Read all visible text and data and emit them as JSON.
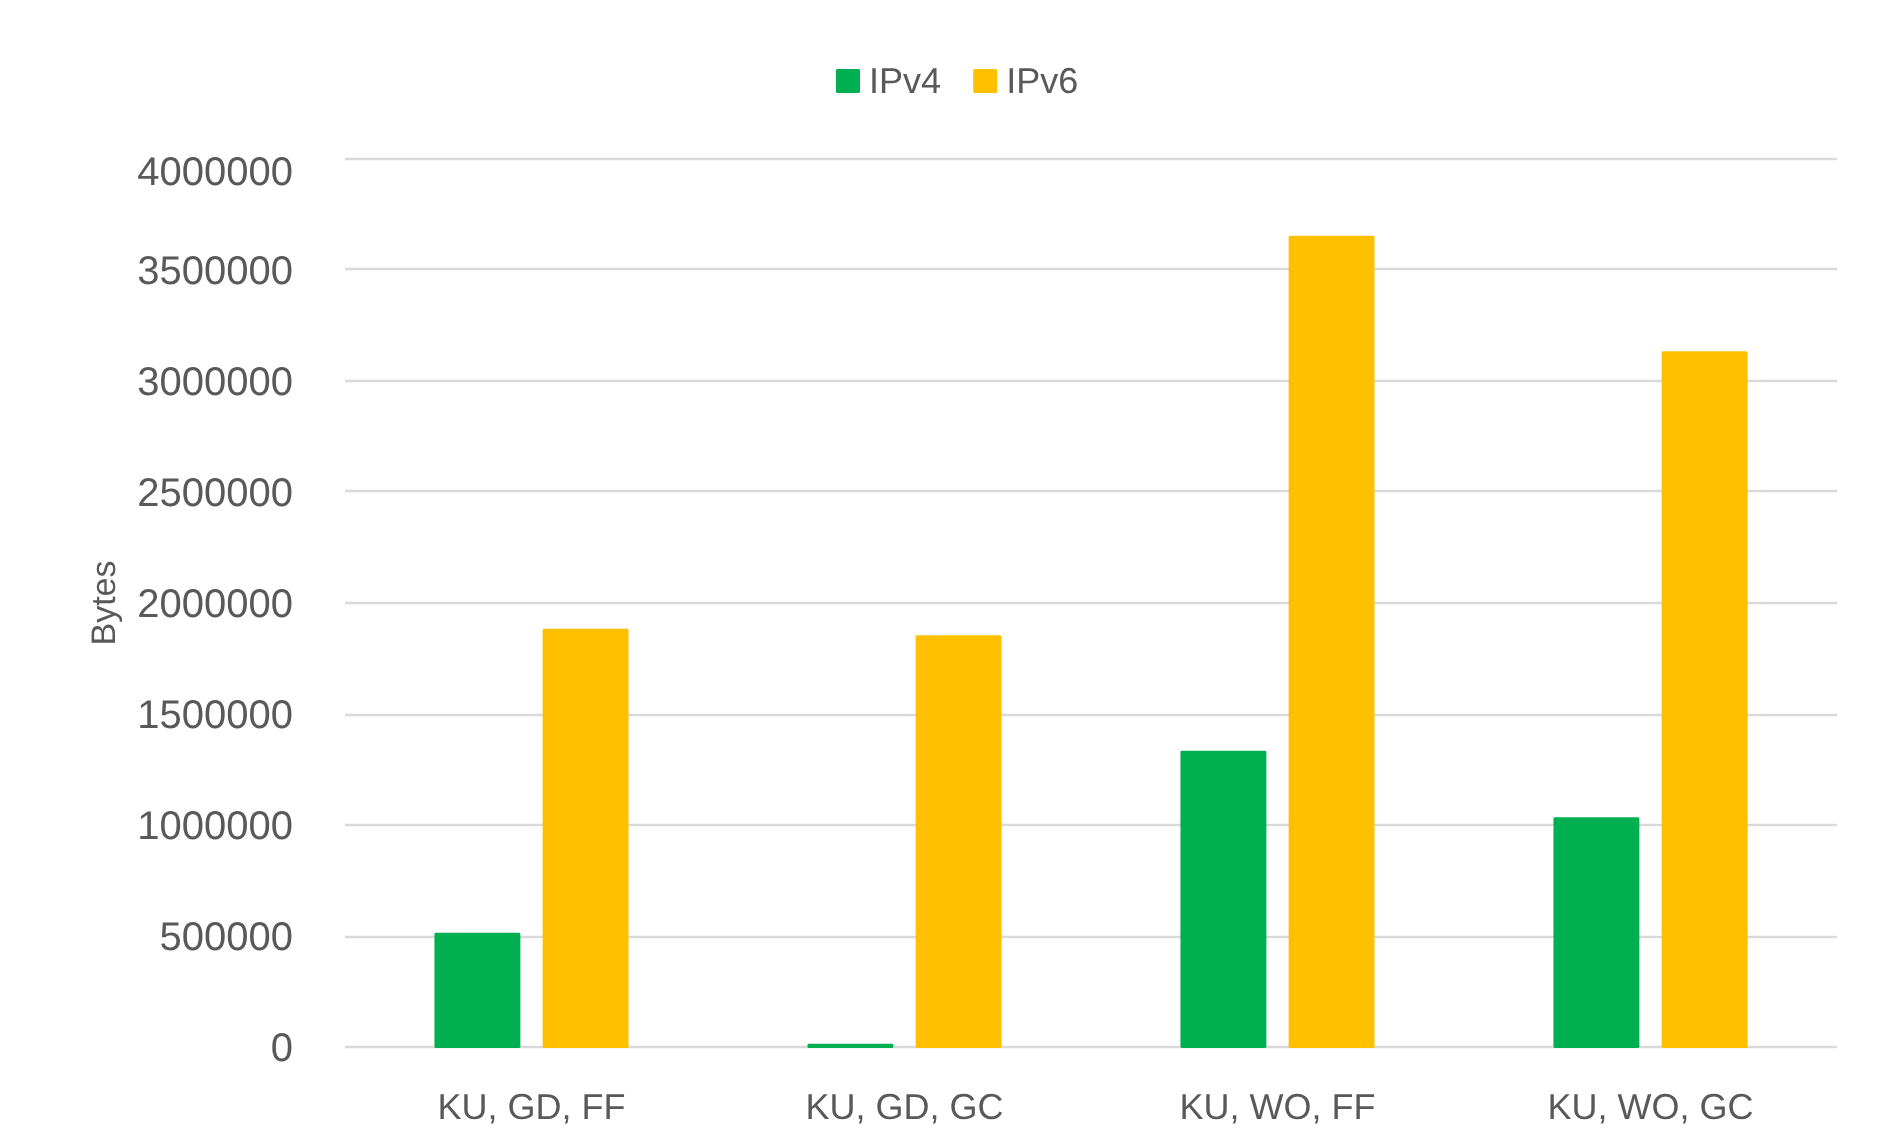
{
  "chart_data": {
    "type": "bar",
    "ylabel": "Bytes",
    "categories": [
      "KU, GD, FF",
      "KU, GD, GC",
      "KU, WO, FF",
      "KU, WO, GC"
    ],
    "series": [
      {
        "name": "IPv4",
        "color": "#00b050",
        "values": [
          510000,
          10000,
          1330000,
          1030000
        ]
      },
      {
        "name": "IPv6",
        "color": "#ffc000",
        "values": [
          1880000,
          1850000,
          3650000,
          3130000
        ]
      }
    ],
    "ylim": [
      0,
      4000000
    ],
    "yticks": [
      0,
      500000,
      1000000,
      1500000,
      2000000,
      2500000,
      3000000,
      3500000,
      4000000
    ],
    "grid": "y",
    "legend": "top"
  }
}
